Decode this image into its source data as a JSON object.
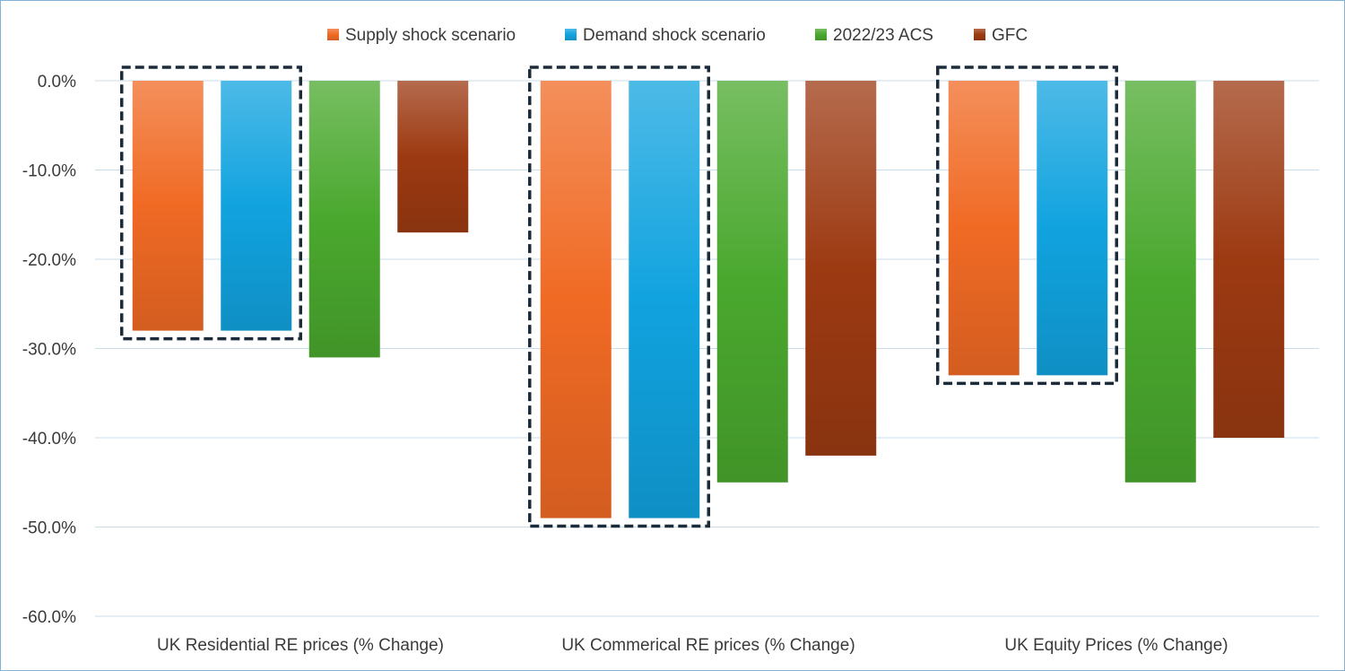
{
  "chart_data": {
    "type": "bar",
    "categories": [
      "UK Residential RE prices (% Change)",
      "UK Commerical RE prices (% Change)",
      "UK Equity Prices (% Change)"
    ],
    "series": [
      {
        "name": "Supply shock scenario",
        "color": "#f06a24",
        "values": [
          -28,
          -49,
          -33
        ]
      },
      {
        "name": "Demand shock scenario",
        "color": "#11a3df",
        "values": [
          -28,
          -49,
          -33
        ]
      },
      {
        "name": "2022/23 ACS",
        "color": "#4aa82e",
        "values": [
          -31,
          -45,
          -45
        ]
      },
      {
        "name": "GFC",
        "color": "#9c3a12",
        "values": [
          -17,
          -42,
          -40
        ]
      }
    ],
    "y_ticks": [
      "0.0%",
      "-10.0%",
      "-20.0%",
      "-30.0%",
      "-40.0%",
      "-50.0%",
      "-60.0%"
    ],
    "ylim": [
      -60,
      0
    ],
    "grid": true,
    "legend_position": "top-center",
    "highlight_boxes": [
      {
        "category": "UK Residential RE prices (% Change)",
        "series": [
          "Supply shock scenario",
          "Demand shock scenario"
        ]
      },
      {
        "category": "UK Commerical RE prices (% Change)",
        "series": [
          "Supply shock scenario",
          "Demand shock scenario"
        ]
      },
      {
        "category": "UK Equity Prices (% Change)",
        "series": [
          "Supply shock scenario",
          "Demand shock scenario"
        ]
      }
    ],
    "title": "",
    "xlabel": "",
    "ylabel": ""
  }
}
